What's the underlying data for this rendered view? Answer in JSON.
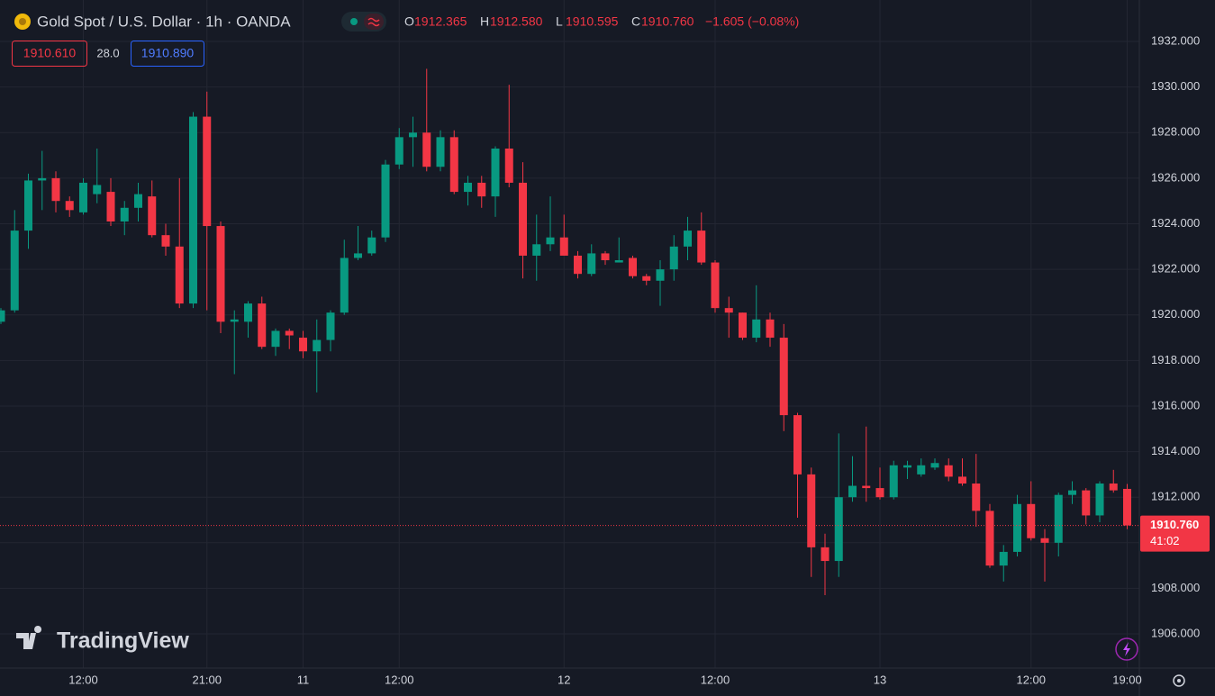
{
  "header": {
    "title": "Gold Spot / U.S. Dollar · 1h · OANDA",
    "ohlc": [
      {
        "key": "O",
        "value": "1912.365"
      },
      {
        "key": "H",
        "value": "1912.580"
      },
      {
        "key": "L",
        "value": "1910.595"
      },
      {
        "key": "C",
        "value": "1910.760"
      }
    ],
    "change": "−1.605 (−0.08%)",
    "bid": "1910.610",
    "spread": "28.0",
    "ask": "1910.890"
  },
  "logo": "TradingView",
  "chart_data": {
    "type": "candlestick",
    "up_color": "#089981",
    "down_color": "#f23645",
    "categories": [
      null,
      null,
      null,
      null,
      null,
      null,
      "12:00",
      null,
      null,
      null,
      null,
      null,
      null,
      null,
      null,
      "21:00",
      null,
      null,
      null,
      null,
      null,
      null,
      "11",
      null,
      null,
      null,
      null,
      null,
      null,
      "12:00",
      null,
      null,
      null,
      null,
      null,
      null,
      null,
      null,
      null,
      null,
      null,
      "12",
      null,
      null,
      null,
      null,
      null,
      null,
      null,
      null,
      null,
      null,
      "12:00",
      null,
      null,
      null,
      null,
      null,
      null,
      null,
      null,
      null,
      null,
      null,
      "13",
      null,
      null,
      null,
      null,
      null,
      null,
      null,
      null,
      null,
      null,
      "12:00",
      null,
      null,
      null,
      null,
      null,
      null,
      "19:00"
    ],
    "open": [
      1919.7,
      1920.2,
      1923.7,
      1925.9,
      1926.0,
      1925.0,
      1924.5,
      1925.3,
      1925.4,
      1924.1,
      1924.7,
      1925.2,
      1923.5,
      1923.0,
      1920.5,
      1928.7,
      1923.9,
      1919.7,
      1919.7,
      1920.5,
      1918.6,
      1919.3,
      1919.0,
      1918.4,
      1918.9,
      1920.1,
      1922.5,
      1922.7,
      1923.4,
      1926.6,
      1927.8,
      1928.0,
      1926.5,
      1927.8,
      1925.4,
      1925.8,
      1925.2,
      1927.3,
      1925.8,
      1922.6,
      1923.1,
      1923.4,
      1922.6,
      1921.8,
      1922.7,
      1922.3,
      1922.5,
      1921.7,
      1921.5,
      1922.0,
      1923.0,
      1923.7,
      1922.3,
      1920.3,
      1920.1,
      1919.0,
      1919.8,
      1919.0,
      1915.6,
      1913.0,
      1909.8,
      1909.2,
      1912.0,
      1912.5,
      1912.4,
      1912.0,
      1913.3,
      1913.0,
      1913.3,
      1913.4,
      1912.9,
      1912.6,
      1911.4,
      1909.0,
      1909.6,
      1911.7,
      1910.2,
      1910.0,
      1912.1,
      1912.3,
      1911.2,
      1912.6,
      1912.365
    ],
    "high": [
      1920.3,
      1924.6,
      1926.2,
      1927.2,
      1926.3,
      1925.2,
      1926.0,
      1927.3,
      1926.0,
      1925.0,
      1925.8,
      1925.9,
      1924.0,
      1926.0,
      1928.9,
      1929.8,
      1924.1,
      1920.2,
      1920.6,
      1920.8,
      1919.4,
      1919.4,
      1919.3,
      1919.8,
      1920.2,
      1923.3,
      1923.9,
      1923.7,
      1926.8,
      1928.2,
      1928.7,
      1930.8,
      1928.1,
      1928.1,
      1926.1,
      1926.1,
      1927.4,
      1930.1,
      1926.7,
      1924.4,
      1925.2,
      1924.4,
      1922.8,
      1923.1,
      1922.8,
      1923.4,
      1922.6,
      1921.8,
      1922.4,
      1923.5,
      1924.3,
      1924.5,
      1922.4,
      1920.8,
      1920.1,
      1921.3,
      1920.1,
      1919.6,
      1915.7,
      1913.3,
      1910.4,
      1914.8,
      1913.8,
      1915.1,
      1913.3,
      1913.6,
      1913.6,
      1913.7,
      1913.7,
      1913.7,
      1913.7,
      1913.9,
      1911.7,
      1909.9,
      1912.1,
      1912.7,
      1910.6,
      1912.2,
      1912.7,
      1912.4,
      1912.7,
      1913.2,
      1912.58
    ],
    "low": [
      1919.6,
      1920.1,
      1922.9,
      1924.6,
      1924.5,
      1924.3,
      1924.4,
      1924.9,
      1923.9,
      1923.5,
      1924.1,
      1923.4,
      1922.6,
      1920.3,
      1920.3,
      1920.2,
      1919.2,
      1917.4,
      1919.0,
      1918.5,
      1918.2,
      1918.5,
      1918.1,
      1916.6,
      1918.4,
      1920.0,
      1922.4,
      1922.6,
      1923.2,
      1926.4,
      1926.5,
      1926.3,
      1926.3,
      1925.3,
      1924.8,
      1924.7,
      1924.3,
      1925.6,
      1921.6,
      1921.5,
      1922.8,
      1922.6,
      1921.6,
      1921.7,
      1922.2,
      1922.3,
      1921.6,
      1921.3,
      1920.4,
      1921.5,
      1922.4,
      1922.2,
      1920.1,
      1919.0,
      1918.9,
      1918.8,
      1918.6,
      1914.9,
      1911.1,
      1908.5,
      1907.7,
      1908.5,
      1911.8,
      1911.8,
      1911.9,
      1911.9,
      1912.8,
      1912.9,
      1913.2,
      1912.7,
      1912.5,
      1910.7,
      1908.9,
      1908.3,
      1909.4,
      1910.1,
      1908.3,
      1909.4,
      1911.7,
      1910.8,
      1910.9,
      1912.2,
      1910.595
    ],
    "close": [
      1920.2,
      1923.7,
      1925.9,
      1926.0,
      1925.0,
      1924.6,
      1925.8,
      1925.7,
      1924.1,
      1924.7,
      1925.3,
      1923.5,
      1923.0,
      1920.5,
      1928.7,
      1923.9,
      1919.7,
      1919.8,
      1920.5,
      1918.6,
      1919.3,
      1919.1,
      1918.4,
      1918.9,
      1920.1,
      1922.5,
      1922.7,
      1923.4,
      1926.6,
      1927.8,
      1928.0,
      1926.5,
      1927.8,
      1925.4,
      1925.8,
      1925.2,
      1927.3,
      1925.8,
      1922.6,
      1923.1,
      1923.4,
      1922.6,
      1921.8,
      1922.7,
      1922.4,
      1922.4,
      1921.7,
      1921.5,
      1922.0,
      1923.0,
      1923.7,
      1922.3,
      1920.3,
      1920.1,
      1919.0,
      1919.8,
      1919.0,
      1915.6,
      1913.0,
      1909.8,
      1909.2,
      1912.0,
      1912.5,
      1912.4,
      1912.0,
      1913.4,
      1913.4,
      1913.4,
      1913.5,
      1912.9,
      1912.6,
      1911.4,
      1909.0,
      1909.6,
      1911.7,
      1910.2,
      1910.0,
      1912.1,
      1912.3,
      1911.2,
      1912.6,
      1912.3,
      1910.76
    ],
    "ylim": [
      1904.5,
      1933.82
    ],
    "yticks": [
      {
        "value": 1906,
        "label": "1906.000"
      },
      {
        "value": 1908,
        "label": "1908.000"
      },
      {
        "value": 1910,
        "label": "1910.000"
      },
      {
        "value": 1912,
        "label": "1912.000"
      },
      {
        "value": 1914,
        "label": "1914.000"
      },
      {
        "value": 1916,
        "label": "1916.000"
      },
      {
        "value": 1918,
        "label": "1918.000"
      },
      {
        "value": 1920,
        "label": "1920.000"
      },
      {
        "value": 1922,
        "label": "1922.000"
      },
      {
        "value": 1924,
        "label": "1924.000"
      },
      {
        "value": 1926,
        "label": "1926.000"
      },
      {
        "value": 1928,
        "label": "1928.000"
      },
      {
        "value": 1930,
        "label": "1930.000"
      },
      {
        "value": 1932,
        "label": "1932.000"
      }
    ],
    "grid": true,
    "last_price_label": "1910.760",
    "countdown": "41:02"
  }
}
